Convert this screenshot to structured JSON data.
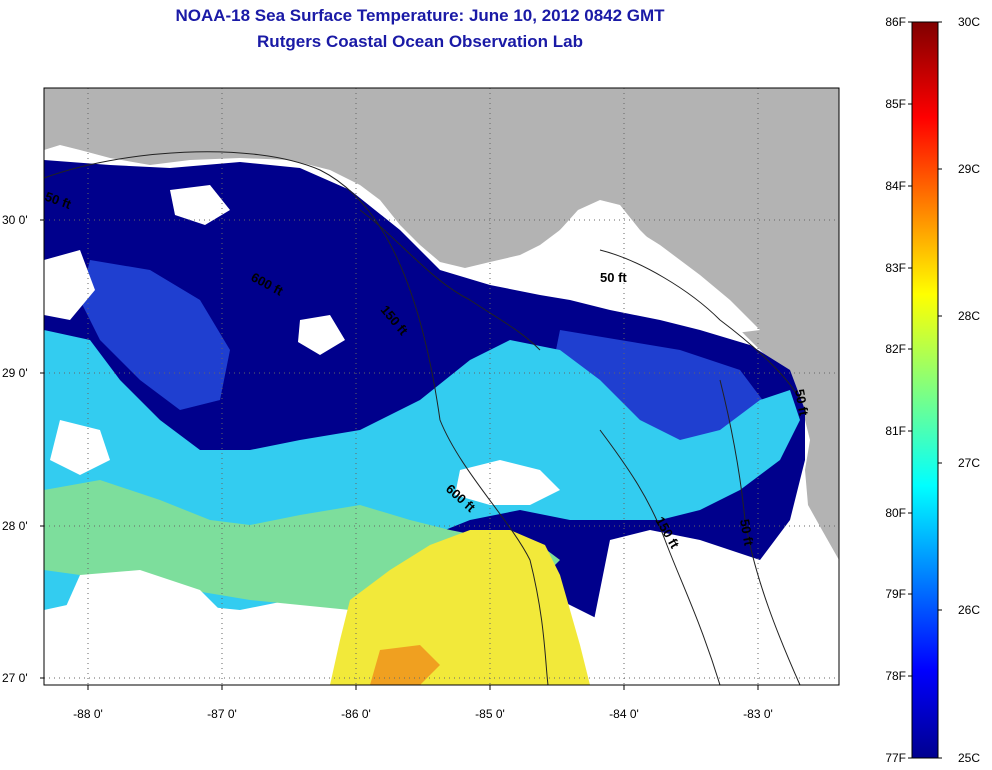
{
  "title_line1": "NOAA-18 Sea Surface Temperature:  June 10, 2012 0842 GMT",
  "title_line2": "Rutgers Coastal Ocean Observation Lab",
  "lon_ticks": [
    "-88 0'",
    "-87 0'",
    "-86 0'",
    "-85 0'",
    "-84 0'",
    "-83 0'"
  ],
  "lat_ticks": [
    "30 0'",
    "29 0'",
    "28 0'",
    "27 0'"
  ],
  "colorbar": {
    "fahrenheit": [
      "86F",
      "85F",
      "84F",
      "83F",
      "82F",
      "81F",
      "80F",
      "79F",
      "78F",
      "77F"
    ],
    "celsius": [
      "30C",
      "29C",
      "28C",
      "27C",
      "26C",
      "25C"
    ]
  },
  "contour_labels": [
    "50 ft",
    "600 ft",
    "50 ft",
    "150 ft",
    "600 ft",
    "150 ft",
    "50 ft",
    "50 ft"
  ],
  "colors": {
    "land": "#b3b3b3",
    "cloud": "#ffffff",
    "cold": "#00008c",
    "blue": "#1a4fe0",
    "cyan": "#33ccf0",
    "green": "#7dde9c",
    "yellow": "#f2e93a",
    "orange": "#f0a020",
    "title": "#1a1aa6"
  }
}
